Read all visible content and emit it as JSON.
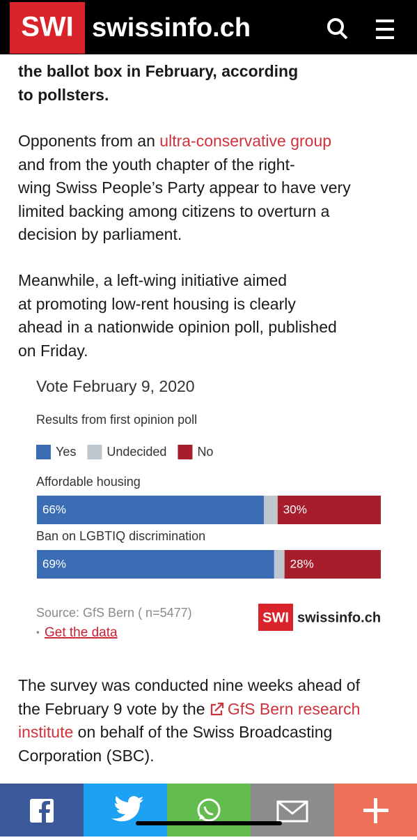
{
  "header": {
    "logo": "SWI",
    "site": "swissinfo.ch"
  },
  "article": {
    "paragraphs": [
      {
        "bold": true,
        "lines": [
          [
            {
              "text": "the ballot box in February, according"
            }
          ],
          [
            {
              "text": "to pollsters."
            }
          ]
        ]
      },
      {
        "lines": [
          [
            {
              "text": "Opponents from an "
            },
            {
              "text": "ultra-conservative group",
              "link": true
            }
          ],
          [
            {
              "text": "and from the youth chapter of the right-"
            }
          ],
          [
            {
              "text": "wing Swiss People’s Party appear to have very"
            }
          ],
          [
            {
              "text": "limited backing among citizens to overturn a"
            }
          ],
          [
            {
              "text": "decision by parliament."
            }
          ]
        ]
      },
      {
        "lines": [
          [
            {
              "text": "Meanwhile, a left-wing initiative aimed"
            }
          ],
          [
            {
              "text": "at promoting low-rent housing is clearly"
            }
          ],
          [
            {
              "text": "ahead in a nationwide opinion poll, published"
            }
          ],
          [
            {
              "text": "on Friday."
            }
          ]
        ]
      },
      {
        "lines": [
          [
            {
              "text": "The survey was conducted nine weeks ahead of"
            }
          ],
          [
            {
              "text": "the February 9 vote by the "
            },
            {
              "text": "GfS Bern research",
              "link": true,
              "icon": "external"
            }
          ],
          [
            {
              "text": "institute",
              "link": true
            },
            {
              "text": " on behalf of the Swiss Broadcasting"
            }
          ],
          [
            {
              "text": "Corporation (SBC)."
            }
          ]
        ]
      }
    ]
  },
  "chart_data": {
    "type": "bar",
    "orientation": "horizontal",
    "stacked": true,
    "title": "Vote February 9, 2020",
    "subtitle": "Results from first opinion poll",
    "categories": [
      "Affordable housing",
      "Ban on LGBTIQ discrimination"
    ],
    "xlim": [
      0,
      100
    ],
    "series": [
      {
        "name": "Yes",
        "color": "#3a6db4",
        "values": [
          66,
          69
        ],
        "value_labels": [
          "66%",
          "69%"
        ]
      },
      {
        "name": "Undecided",
        "color": "#bdc7cd",
        "values": [
          4,
          3
        ]
      },
      {
        "name": "No",
        "color": "#a71d2b",
        "values": [
          30,
          28
        ],
        "value_labels": [
          "30%",
          "28%"
        ]
      }
    ],
    "source": "Source: GfS Bern ( n=5477)",
    "link": "Get the data",
    "logo": {
      "mark": "SWI",
      "site": "swissinfo.ch"
    }
  }
}
